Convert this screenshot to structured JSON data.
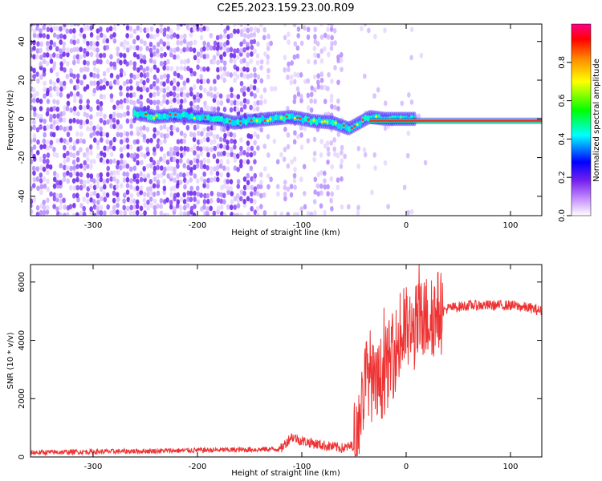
{
  "title": "C2E5.2023.159.23.00.R09",
  "chart_data": [
    {
      "type": "heatmap",
      "xlabel": "Height of straight line (km)",
      "ylabel": "Frequency (Hz)",
      "xlim": [
        -360,
        130
      ],
      "ylim": [
        -50,
        49
      ],
      "xticks": [
        -300,
        -200,
        -100,
        0,
        100
      ],
      "yticks": [
        -40,
        -20,
        0,
        20,
        40
      ],
      "grid": false,
      "colorbar": {
        "label": "Normalized spectral amplitude",
        "range": [
          0,
          1
        ],
        "ticks": [
          "0.0",
          "0.2",
          "0.4",
          "0.6",
          "0.8"
        ]
      },
      "ridge": {
        "x": [
          -260,
          -240,
          -220,
          -200,
          -180,
          -165,
          -150,
          -130,
          -110,
          -90,
          -70,
          -55,
          -45,
          -35,
          -20,
          0,
          10,
          50,
          130
        ],
        "y": [
          3,
          1,
          2,
          1,
          0,
          -2,
          -1,
          0,
          1,
          -1,
          -2,
          -5,
          -2,
          1,
          0,
          0,
          0,
          -1,
          -1
        ]
      }
    },
    {
      "type": "line",
      "xlabel": "Height of straight line (km)",
      "ylabel": "SNR (10 * v/v)",
      "xlim": [
        -360,
        130
      ],
      "ylim": [
        0,
        6600
      ],
      "xticks": [
        -300,
        -200,
        -100,
        0,
        100
      ],
      "yticks": [
        0,
        2000,
        4000,
        6000
      ],
      "grid": false,
      "series": [
        {
          "color": "#ee3333",
          "x": [
            -360,
            -300,
            -250,
            -200,
            -150,
            -120,
            -110,
            -100,
            -80,
            -60,
            -50,
            -45,
            -40,
            -35,
            -30,
            -25,
            -20,
            -15,
            -10,
            -5,
            0,
            5,
            10,
            15,
            20,
            25,
            30,
            35,
            40,
            50,
            60,
            80,
            100,
            120,
            130
          ],
          "y": [
            150,
            180,
            200,
            230,
            250,
            280,
            700,
            550,
            400,
            300,
            400,
            1200,
            2500,
            3000,
            2200,
            2600,
            3000,
            3300,
            3700,
            4000,
            4400,
            4200,
            4500,
            4700,
            4800,
            4850,
            4950,
            5000,
            5100,
            5150,
            5200,
            5200,
            5200,
            5100,
            5000
          ]
        }
      ]
    }
  ]
}
